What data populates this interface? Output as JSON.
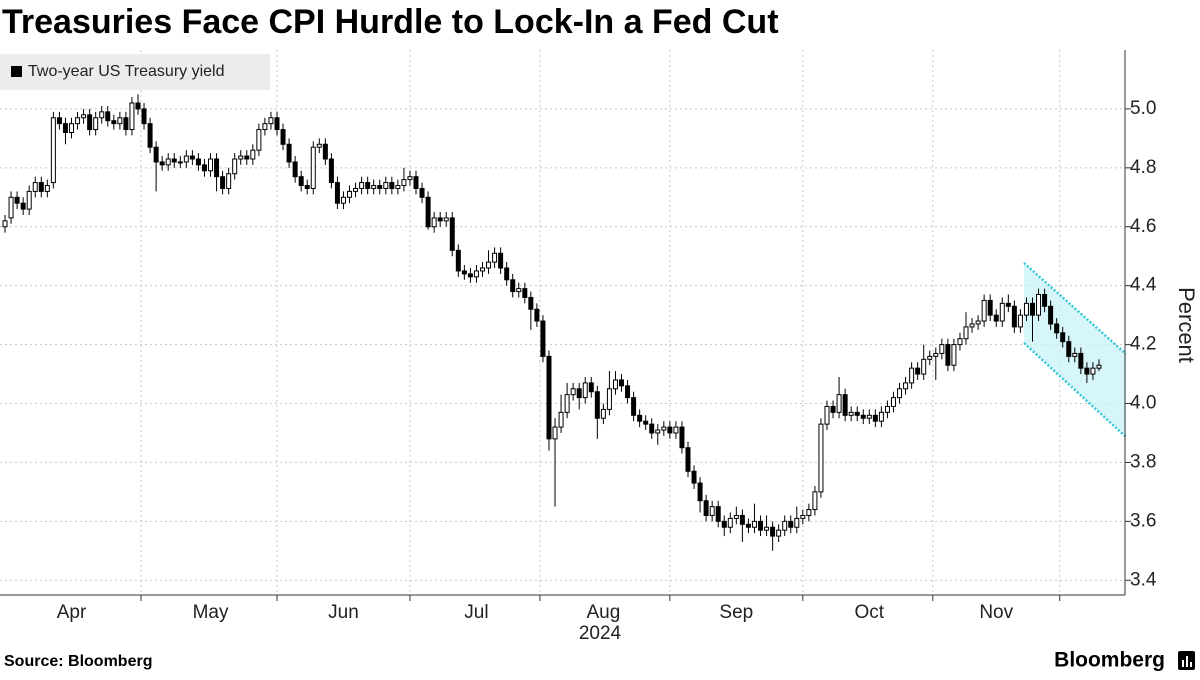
{
  "chart_data": {
    "type": "candlestick",
    "title": "Treasuries Face CPI Hurdle to Lock-In a Fed Cut",
    "ylabel": "Percent",
    "xlabel": "2024",
    "source": "Source: Bloomberg",
    "brand": "Bloomberg",
    "ylim": [
      3.35,
      5.2
    ],
    "yticks": [
      3.4,
      3.6,
      3.8,
      {
        "value": 4.0,
        "label": "4.0"
      },
      4.2,
      4.4,
      4.6,
      4.8,
      {
        "value": 5.0,
        "label": "5.0"
      }
    ],
    "grid": true,
    "categories": [
      null,
      null,
      null,
      null,
      null,
      null,
      null,
      null,
      null,
      null,
      null,
      "Apr",
      null,
      null,
      null,
      null,
      null,
      null,
      null,
      null,
      null,
      null,
      null,
      null,
      null,
      null,
      null,
      null,
      null,
      null,
      null,
      null,
      null,
      null,
      "May",
      null,
      null,
      null,
      null,
      null,
      null,
      null,
      null,
      null,
      null,
      null,
      null,
      null,
      null,
      null,
      null,
      null,
      null,
      null,
      null,
      null,
      "Jun",
      null,
      null,
      null,
      null,
      null,
      null,
      null,
      null,
      null,
      null,
      null,
      null,
      null,
      null,
      null,
      null,
      null,
      null,
      null,
      null,
      null,
      "Jul",
      null,
      null,
      null,
      null,
      null,
      null,
      null,
      null,
      null,
      null,
      null,
      null,
      null,
      null,
      null,
      null,
      null,
      null,
      null,
      null,
      "Aug",
      null,
      null,
      null,
      null,
      null,
      null,
      null,
      null,
      null,
      null,
      null,
      null,
      null,
      null,
      null,
      null,
      null,
      null,
      null,
      null,
      null,
      "Sep",
      null,
      null,
      null,
      null,
      null,
      null,
      null,
      null,
      null,
      null,
      null,
      null,
      null,
      null,
      null,
      null,
      null,
      null,
      null,
      null,
      null,
      "Oct",
      null,
      null,
      null,
      null,
      null,
      null,
      null,
      null,
      null,
      null,
      null,
      null,
      null,
      null,
      null,
      null,
      null,
      null,
      null,
      null,
      "Nov",
      null,
      null,
      null,
      null,
      null,
      null,
      null,
      null,
      null,
      null,
      null,
      null,
      null,
      null,
      null,
      null,
      null
    ],
    "series": [
      {
        "name": "Two-year US Treasury yield",
        "color": "#000000",
        "open": [
          4.6,
          4.63,
          4.7,
          4.68,
          4.66,
          4.72,
          4.75,
          4.72,
          4.75,
          4.97,
          4.95,
          4.92,
          4.95,
          4.97,
          4.98,
          4.93,
          4.97,
          4.99,
          4.96,
          4.95,
          4.97,
          4.93,
          5.02,
          5.0,
          4.95,
          4.87,
          4.82,
          4.81,
          4.83,
          4.82,
          4.82,
          4.84,
          4.83,
          4.81,
          4.79,
          4.83,
          4.77,
          4.73,
          4.78,
          4.83,
          4.84,
          4.83,
          4.86,
          4.93,
          4.95,
          4.97,
          4.93,
          4.88,
          4.82,
          4.77,
          4.74,
          4.73,
          4.87,
          4.88,
          4.83,
          4.75,
          4.68,
          4.7,
          4.72,
          4.73,
          4.75,
          4.73,
          4.74,
          4.73,
          4.75,
          4.73,
          4.74,
          4.76,
          4.77,
          4.73,
          4.7,
          4.6,
          4.63,
          4.62,
          4.63,
          4.52,
          4.45,
          4.44,
          4.43,
          4.45,
          4.46,
          4.48,
          4.51,
          4.46,
          4.42,
          4.38,
          4.39,
          4.36,
          4.32,
          4.28,
          4.16,
          3.88,
          3.92,
          3.97,
          4.03,
          4.05,
          4.02,
          4.07,
          4.04,
          3.95,
          3.98,
          4.05,
          4.08,
          4.06,
          4.02,
          3.96,
          3.94,
          3.93,
          3.9,
          3.91,
          3.92,
          3.9,
          3.92,
          3.85,
          3.77,
          3.73,
          3.67,
          3.62,
          3.65,
          3.6,
          3.58,
          3.61,
          3.62,
          3.59,
          3.58,
          3.6,
          3.57,
          3.58,
          3.55,
          3.57,
          3.6,
          3.58,
          3.61,
          3.62,
          3.64,
          3.7,
          3.93,
          3.99,
          3.97,
          4.03,
          3.96,
          3.97,
          3.96,
          3.95,
          3.96,
          3.94,
          3.97,
          3.99,
          4.02,
          4.05,
          4.07,
          4.12,
          4.1,
          4.15,
          4.16,
          4.17,
          4.2,
          4.13,
          4.2,
          4.22,
          4.26,
          4.27,
          4.28,
          4.35,
          4.3,
          4.28,
          4.34,
          4.33,
          4.26,
          4.3,
          4.34,
          4.3,
          4.37,
          4.33,
          4.27,
          4.24,
          4.21,
          4.16,
          4.17,
          4.12,
          4.1,
          4.12
        ],
        "high": [
          4.64,
          4.72,
          4.72,
          4.7,
          4.74,
          4.77,
          4.77,
          4.76,
          4.99,
          4.99,
          4.97,
          4.97,
          4.99,
          5.0,
          5.0,
          4.99,
          5.01,
          5.01,
          4.98,
          4.99,
          4.99,
          5.04,
          5.05,
          5.02,
          4.97,
          4.89,
          4.84,
          4.85,
          4.85,
          4.84,
          4.86,
          4.86,
          4.85,
          4.83,
          4.85,
          4.85,
          4.79,
          4.8,
          4.85,
          4.86,
          4.86,
          4.88,
          4.95,
          4.97,
          4.99,
          4.99,
          4.95,
          4.9,
          4.84,
          4.79,
          4.76,
          4.89,
          4.9,
          4.9,
          4.85,
          4.77,
          4.72,
          4.74,
          4.75,
          4.77,
          4.77,
          4.76,
          4.76,
          4.77,
          4.77,
          4.76,
          4.8,
          4.79,
          4.79,
          4.75,
          4.72,
          4.65,
          4.65,
          4.65,
          4.65,
          4.54,
          4.47,
          4.46,
          4.47,
          4.48,
          4.52,
          4.53,
          4.53,
          4.48,
          4.44,
          4.41,
          4.41,
          4.38,
          4.34,
          4.3,
          4.18,
          3.95,
          4.03,
          4.07,
          4.07,
          4.07,
          4.09,
          4.09,
          4.06,
          4.0,
          4.11,
          4.11,
          4.1,
          4.08,
          4.04,
          3.98,
          3.96,
          3.95,
          3.93,
          3.94,
          3.94,
          3.94,
          3.94,
          3.87,
          3.79,
          3.75,
          3.69,
          3.67,
          3.67,
          3.62,
          3.63,
          3.65,
          3.64,
          3.61,
          3.66,
          3.62,
          3.62,
          3.6,
          3.59,
          3.62,
          3.62,
          3.65,
          3.64,
          3.66,
          3.72,
          3.95,
          4.01,
          4.01,
          4.09,
          4.05,
          3.99,
          3.99,
          3.98,
          3.98,
          3.98,
          3.99,
          4.01,
          4.04,
          4.07,
          4.09,
          4.14,
          4.14,
          4.2,
          4.18,
          4.19,
          4.22,
          4.22,
          4.22,
          4.24,
          4.31,
          4.29,
          4.3,
          4.37,
          4.37,
          4.32,
          4.36,
          4.37,
          4.35,
          4.32,
          4.36,
          4.36,
          4.39,
          4.39,
          4.35,
          4.29,
          4.26,
          4.23,
          4.19,
          4.19,
          4.14,
          4.14,
          4.15
        ],
        "low": [
          4.58,
          4.61,
          4.66,
          4.64,
          4.64,
          4.7,
          4.7,
          4.7,
          4.73,
          4.93,
          4.88,
          4.9,
          4.93,
          4.95,
          4.91,
          4.91,
          4.95,
          4.94,
          4.93,
          4.93,
          4.91,
          4.91,
          4.98,
          4.93,
          4.85,
          4.72,
          4.79,
          4.79,
          4.8,
          4.8,
          4.8,
          4.81,
          4.79,
          4.77,
          4.77,
          4.72,
          4.71,
          4.71,
          4.76,
          4.81,
          4.81,
          4.81,
          4.84,
          4.91,
          4.93,
          4.91,
          4.86,
          4.8,
          4.75,
          4.72,
          4.71,
          4.71,
          4.85,
          4.81,
          4.73,
          4.66,
          4.66,
          4.68,
          4.7,
          4.71,
          4.71,
          4.71,
          4.71,
          4.71,
          4.71,
          4.71,
          4.72,
          4.74,
          4.71,
          4.68,
          4.59,
          4.58,
          4.6,
          4.6,
          4.5,
          4.43,
          4.42,
          4.41,
          4.41,
          4.43,
          4.44,
          4.46,
          4.44,
          4.4,
          4.36,
          4.36,
          4.34,
          4.25,
          4.26,
          4.14,
          3.84,
          3.65,
          3.9,
          3.95,
          4.01,
          3.98,
          4.0,
          4.02,
          3.88,
          3.93,
          3.96,
          4.03,
          4.04,
          4.0,
          3.94,
          3.92,
          3.91,
          3.88,
          3.86,
          3.89,
          3.88,
          3.88,
          3.83,
          3.75,
          3.71,
          3.63,
          3.6,
          3.6,
          3.58,
          3.55,
          3.56,
          3.59,
          3.53,
          3.56,
          3.56,
          3.55,
          3.55,
          3.5,
          3.53,
          3.55,
          3.56,
          3.56,
          3.59,
          3.6,
          3.62,
          3.68,
          3.91,
          3.95,
          3.95,
          3.94,
          3.94,
          3.94,
          3.93,
          3.93,
          3.92,
          3.92,
          3.95,
          3.97,
          4.0,
          4.03,
          4.05,
          4.08,
          4.08,
          4.13,
          4.08,
          4.15,
          4.11,
          4.11,
          4.18,
          4.2,
          4.24,
          4.25,
          4.26,
          4.28,
          4.26,
          4.26,
          4.31,
          4.24,
          4.24,
          4.28,
          4.21,
          4.28,
          4.31,
          4.25,
          4.22,
          4.19,
          4.14,
          4.14,
          4.1,
          4.07,
          4.08,
          4.11
        ],
        "close": [
          4.62,
          4.7,
          4.68,
          4.66,
          4.72,
          4.75,
          4.72,
          4.74,
          4.97,
          4.95,
          4.92,
          4.95,
          4.97,
          4.98,
          4.93,
          4.97,
          4.99,
          4.96,
          4.95,
          4.97,
          4.93,
          5.02,
          5.0,
          4.95,
          4.87,
          4.82,
          4.81,
          4.83,
          4.82,
          4.82,
          4.84,
          4.83,
          4.81,
          4.79,
          4.83,
          4.77,
          4.73,
          4.78,
          4.83,
          4.84,
          4.83,
          4.86,
          4.93,
          4.95,
          4.97,
          4.93,
          4.88,
          4.82,
          4.77,
          4.74,
          4.73,
          4.87,
          4.88,
          4.83,
          4.75,
          4.68,
          4.7,
          4.72,
          4.73,
          4.75,
          4.73,
          4.74,
          4.73,
          4.75,
          4.73,
          4.74,
          4.76,
          4.77,
          4.73,
          4.7,
          4.6,
          4.63,
          4.62,
          4.63,
          4.52,
          4.45,
          4.44,
          4.43,
          4.45,
          4.46,
          4.48,
          4.51,
          4.46,
          4.42,
          4.38,
          4.39,
          4.36,
          4.32,
          4.28,
          4.16,
          3.88,
          3.92,
          3.97,
          4.03,
          4.05,
          4.02,
          4.07,
          4.04,
          3.95,
          3.98,
          4.05,
          4.08,
          4.06,
          4.02,
          3.96,
          3.94,
          3.93,
          3.9,
          3.91,
          3.92,
          3.9,
          3.92,
          3.85,
          3.77,
          3.73,
          3.67,
          3.62,
          3.65,
          3.6,
          3.58,
          3.61,
          3.62,
          3.59,
          3.58,
          3.6,
          3.57,
          3.58,
          3.55,
          3.57,
          3.6,
          3.58,
          3.61,
          3.62,
          3.64,
          3.7,
          3.93,
          3.99,
          3.97,
          4.03,
          3.96,
          3.97,
          3.96,
          3.95,
          3.96,
          3.94,
          3.97,
          3.99,
          4.02,
          4.05,
          4.07,
          4.12,
          4.1,
          4.15,
          4.16,
          4.17,
          4.2,
          4.13,
          4.2,
          4.22,
          4.26,
          4.27,
          4.28,
          4.35,
          4.3,
          4.28,
          4.34,
          4.33,
          4.26,
          4.3,
          4.34,
          4.3,
          4.37,
          4.33,
          4.27,
          4.24,
          4.21,
          4.16,
          4.17,
          4.12,
          4.1,
          4.12,
          4.13
        ]
      }
    ]
  }
}
